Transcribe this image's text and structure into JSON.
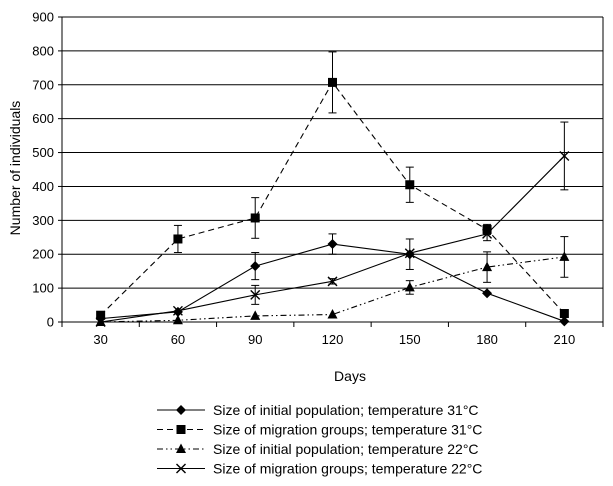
{
  "chart_data": {
    "type": "line",
    "xlabel": "Days",
    "ylabel": "Number of individuals",
    "ylim": [
      0,
      900
    ],
    "y_ticks": [
      0,
      100,
      200,
      300,
      400,
      500,
      600,
      700,
      800,
      900
    ],
    "categories": [
      "30",
      "60",
      "90",
      "120",
      "150",
      "180",
      "210"
    ],
    "grid": "horizontal",
    "legend_position": "bottom",
    "series": [
      {
        "name": "Size of initial population; temperature 31°C",
        "marker": "diamond",
        "line_style": "solid",
        "values": [
          10,
          30,
          165,
          230,
          200,
          85,
          2
        ],
        "errors": [
          0,
          0,
          40,
          30,
          45,
          0,
          0
        ]
      },
      {
        "name": "Size of migration groups; temperature 31°C",
        "marker": "square",
        "line_style": "dashed",
        "values": [
          20,
          245,
          307,
          707,
          405,
          273,
          25
        ],
        "errors": [
          0,
          40,
          60,
          90,
          52,
          15,
          10
        ]
      },
      {
        "name": "Size of initial population; temperature 22°C",
        "marker": "triangle",
        "line_style": "dashdotdot",
        "values": [
          0,
          5,
          18,
          22,
          102,
          162,
          192
        ],
        "errors": [
          0,
          0,
          0,
          0,
          20,
          45,
          60
        ]
      },
      {
        "name": "Size of migration groups; temperature 22°C",
        "marker": "cross",
        "line_style": "solid",
        "values": [
          0,
          33,
          80,
          120,
          203,
          260,
          490
        ],
        "errors": [
          0,
          0,
          28,
          8,
          0,
          20,
          100
        ]
      }
    ]
  }
}
